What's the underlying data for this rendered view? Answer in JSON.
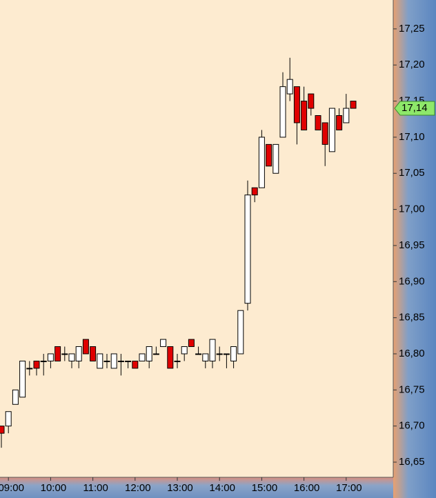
{
  "chart_data": {
    "type": "candlestick",
    "categories": [
      null,
      "09:00",
      null,
      null,
      null,
      null,
      null,
      "10:00",
      null,
      null,
      null,
      null,
      null,
      "11:00",
      null,
      null,
      null,
      null,
      null,
      "12:00",
      null,
      null,
      null,
      null,
      null,
      "13:00",
      null,
      null,
      null,
      null,
      null,
      "14:00",
      null,
      null,
      null,
      null,
      null,
      "15:00",
      null,
      null,
      null,
      null,
      null,
      "16:00",
      null,
      null,
      null,
      null,
      null,
      "17:00",
      null
    ],
    "open": [
      16.7,
      16.7,
      16.73,
      16.74,
      16.78,
      16.79,
      16.79,
      16.79,
      16.81,
      16.8,
      16.79,
      16.79,
      16.82,
      16.81,
      16.78,
      16.79,
      16.78,
      16.79,
      16.79,
      16.79,
      16.79,
      16.79,
      16.8,
      16.81,
      16.81,
      16.79,
      16.8,
      16.82,
      16.8,
      16.79,
      16.79,
      16.8,
      16.8,
      16.79,
      16.8,
      16.87,
      17.03,
      17.03,
      17.09,
      17.05,
      17.1,
      17.16,
      17.17,
      17.15,
      17.16,
      17.13,
      17.12,
      17.08,
      17.13,
      17.12,
      17.15
    ],
    "high": [
      16.7,
      16.72,
      16.75,
      16.79,
      16.79,
      16.79,
      16.8,
      16.8,
      16.81,
      16.81,
      16.8,
      16.81,
      16.82,
      16.81,
      16.8,
      16.8,
      16.8,
      16.8,
      16.79,
      16.79,
      16.8,
      16.81,
      16.81,
      16.82,
      16.81,
      16.8,
      16.81,
      16.82,
      16.81,
      16.8,
      16.82,
      16.81,
      16.8,
      16.81,
      16.86,
      17.04,
      17.03,
      17.11,
      17.09,
      17.09,
      17.19,
      17.21,
      17.17,
      17.17,
      17.16,
      17.13,
      17.12,
      17.14,
      17.14,
      17.16,
      17.15
    ],
    "low": [
      16.67,
      16.69,
      16.73,
      16.74,
      16.77,
      16.77,
      16.77,
      16.78,
      16.79,
      16.79,
      16.78,
      16.78,
      16.8,
      16.79,
      16.78,
      16.78,
      16.78,
      16.77,
      16.78,
      16.78,
      16.79,
      16.78,
      16.8,
      16.81,
      16.78,
      16.78,
      16.79,
      16.81,
      16.8,
      16.78,
      16.78,
      16.79,
      16.78,
      16.78,
      16.8,
      16.86,
      17.01,
      17.03,
      17.06,
      17.05,
      17.1,
      17.15,
      17.09,
      17.11,
      17.13,
      17.11,
      17.06,
      17.08,
      17.11,
      17.12,
      17.14
    ],
    "close": [
      16.69,
      16.72,
      16.75,
      16.79,
      16.78,
      16.78,
      16.79,
      16.8,
      16.79,
      16.8,
      16.8,
      16.81,
      16.8,
      16.79,
      16.8,
      16.79,
      16.8,
      16.79,
      16.79,
      16.78,
      16.8,
      16.81,
      16.8,
      16.82,
      16.78,
      16.79,
      16.81,
      16.81,
      16.8,
      16.8,
      16.82,
      16.8,
      16.8,
      16.81,
      16.86,
      17.02,
      17.02,
      17.1,
      17.06,
      17.09,
      17.17,
      17.18,
      17.12,
      17.11,
      17.14,
      17.11,
      17.09,
      17.14,
      17.11,
      17.14,
      17.14
    ],
    "up_color": "#ffffff",
    "down_color": "#e00000",
    "ylim": [
      16.629,
      17.29
    ],
    "yticks": [
      {
        "value": 16.65,
        "label": "16,65"
      },
      {
        "value": 16.7,
        "label": "16,70"
      },
      {
        "value": 16.75,
        "label": "16,75"
      },
      {
        "value": 16.8,
        "label": "16,80"
      },
      {
        "value": 16.85,
        "label": "16,85"
      },
      {
        "value": 16.9,
        "label": "16,90"
      },
      {
        "value": 16.95,
        "label": "16,95"
      },
      {
        "value": 17.0,
        "label": "17,00"
      },
      {
        "value": 17.05,
        "label": "17,05"
      },
      {
        "value": 17.1,
        "label": "17,10"
      },
      {
        "value": 17.15,
        "label": "17,15"
      },
      {
        "value": 17.2,
        "label": "17,20"
      },
      {
        "value": 17.25,
        "label": "17,25"
      }
    ],
    "last_price": {
      "value": 17.14,
      "label": "17,14",
      "color": "#8ee86a"
    },
    "grid": false
  }
}
